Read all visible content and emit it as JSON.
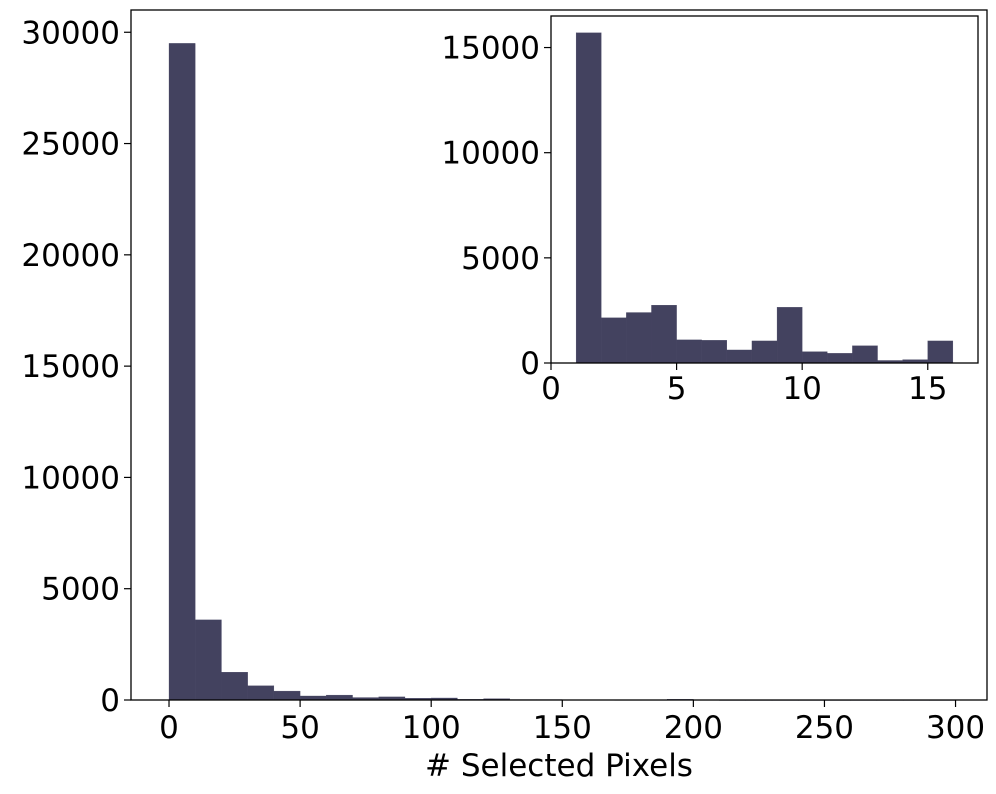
{
  "colors": {
    "bar": "#43425f",
    "axes": "#000000",
    "background": "#ffffff"
  },
  "chart_data": [
    {
      "id": "main",
      "type": "bar",
      "title": "",
      "xlabel": "# Selected Pixels",
      "ylabel": "",
      "xlim": [
        -14.5,
        312
      ],
      "ylim": [
        0,
        31000
      ],
      "xticks": [
        0,
        50,
        100,
        150,
        200,
        250,
        300
      ],
      "yticks": [
        0,
        5000,
        10000,
        15000,
        20000,
        25000,
        30000
      ],
      "grid": false,
      "bins": [
        {
          "x0": 0,
          "x1": 10,
          "value": 29500
        },
        {
          "x0": 10,
          "x1": 20,
          "value": 3600
        },
        {
          "x0": 20,
          "x1": 30,
          "value": 1250
        },
        {
          "x0": 30,
          "x1": 40,
          "value": 640
        },
        {
          "x0": 40,
          "x1": 50,
          "value": 400
        },
        {
          "x0": 50,
          "x1": 60,
          "value": 180
        },
        {
          "x0": 60,
          "x1": 70,
          "value": 220
        },
        {
          "x0": 70,
          "x1": 80,
          "value": 110
        },
        {
          "x0": 80,
          "x1": 90,
          "value": 140
        },
        {
          "x0": 90,
          "x1": 100,
          "value": 80
        },
        {
          "x0": 100,
          "x1": 110,
          "value": 90
        },
        {
          "x0": 110,
          "x1": 120,
          "value": 30
        },
        {
          "x0": 120,
          "x1": 130,
          "value": 60
        },
        {
          "x0": 130,
          "x1": 140,
          "value": 20
        },
        {
          "x0": 140,
          "x1": 150,
          "value": 20
        },
        {
          "x0": 150,
          "x1": 160,
          "value": 15
        },
        {
          "x0": 160,
          "x1": 170,
          "value": 15
        },
        {
          "x0": 170,
          "x1": 180,
          "value": 10
        },
        {
          "x0": 180,
          "x1": 190,
          "value": 10
        },
        {
          "x0": 190,
          "x1": 200,
          "value": 30
        },
        {
          "x0": 200,
          "x1": 210,
          "value": 10
        },
        {
          "x0": 210,
          "x1": 220,
          "value": 5
        },
        {
          "x0": 220,
          "x1": 230,
          "value": 5
        },
        {
          "x0": 230,
          "x1": 240,
          "value": 5
        },
        {
          "x0": 240,
          "x1": 250,
          "value": 5
        },
        {
          "x0": 250,
          "x1": 260,
          "value": 5
        },
        {
          "x0": 260,
          "x1": 270,
          "value": 5
        },
        {
          "x0": 270,
          "x1": 280,
          "value": 5
        },
        {
          "x0": 280,
          "x1": 290,
          "value": 5
        },
        {
          "x0": 290,
          "x1": 300,
          "value": 5
        }
      ]
    },
    {
      "id": "inset",
      "type": "bar",
      "title": "",
      "xlabel": "",
      "ylabel": "",
      "xlim": [
        0,
        17
      ],
      "ylim": [
        0,
        16500
      ],
      "xticks": [
        0,
        5,
        10,
        15
      ],
      "yticks": [
        0,
        5000,
        10000,
        15000
      ],
      "grid": false,
      "bins": [
        {
          "x0": 1,
          "x1": 2,
          "value": 15700
        },
        {
          "x0": 2,
          "x1": 3,
          "value": 2150
        },
        {
          "x0": 3,
          "x1": 4,
          "value": 2400
        },
        {
          "x0": 4,
          "x1": 5,
          "value": 2750
        },
        {
          "x0": 5,
          "x1": 6,
          "value": 1100
        },
        {
          "x0": 6,
          "x1": 7,
          "value": 1080
        },
        {
          "x0": 7,
          "x1": 8,
          "value": 620
        },
        {
          "x0": 8,
          "x1": 9,
          "value": 1050
        },
        {
          "x0": 9,
          "x1": 10,
          "value": 2650
        },
        {
          "x0": 10,
          "x1": 11,
          "value": 540
        },
        {
          "x0": 11,
          "x1": 12,
          "value": 460
        },
        {
          "x0": 12,
          "x1": 13,
          "value": 820
        },
        {
          "x0": 13,
          "x1": 14,
          "value": 120
        },
        {
          "x0": 14,
          "x1": 15,
          "value": 160
        },
        {
          "x0": 15,
          "x1": 16,
          "value": 1050
        }
      ]
    }
  ]
}
